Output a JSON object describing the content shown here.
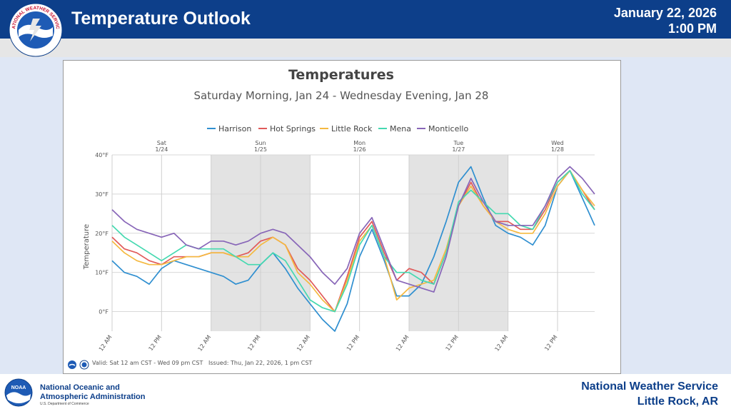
{
  "header": {
    "title": "Temperature Outlook",
    "date": "January 22, 2026",
    "time": "1:00 PM",
    "logo_text": "NATIONAL WEATHER SERVICE"
  },
  "chart_data": {
    "type": "line",
    "title": "Temperatures",
    "subtitle": "Saturday Morning, Jan 24 - Wednesday Evening, Jan 28",
    "ylabel": "Temperature",
    "ylim": [
      -5,
      40
    ],
    "y_ticks": [
      "0°F",
      "10°F",
      "20°F",
      "30°F",
      "40°F"
    ],
    "y_tick_values": [
      0,
      10,
      20,
      30,
      40
    ],
    "x_start": "2026-01-24 00:00",
    "x_step_hours": 3,
    "x_ticks": [
      "12 AM",
      "12 PM",
      "12 AM",
      "12 PM",
      "12 AM",
      "12 PM",
      "12 AM",
      "12 PM",
      "12 AM",
      "12 PM"
    ],
    "x_tick_hours": [
      0,
      12,
      24,
      36,
      48,
      60,
      72,
      84,
      96,
      108
    ],
    "days": [
      {
        "name": "Sat",
        "date": "1/24",
        "hour": 12
      },
      {
        "name": "Sun",
        "date": "1/25",
        "hour": 36
      },
      {
        "name": "Mon",
        "date": "1/26",
        "hour": 60
      },
      {
        "name": "Tue",
        "date": "1/27",
        "hour": 84
      },
      {
        "name": "Wed",
        "date": "1/28",
        "hour": 108
      }
    ],
    "night_shading": [
      [
        24,
        48
      ],
      [
        72,
        96
      ]
    ],
    "grid": true,
    "legend_position": "top",
    "series": [
      {
        "name": "Harrison",
        "color": "#2f8fd0",
        "values": [
          13,
          10,
          9,
          7,
          11,
          13,
          12,
          11,
          10,
          9,
          7,
          8,
          12,
          15,
          11,
          6,
          2,
          -2,
          -5,
          2,
          14,
          21,
          13,
          4,
          4,
          7,
          14,
          23,
          33,
          37,
          29,
          22,
          20,
          19,
          17,
          22,
          32,
          36,
          29,
          22
        ]
      },
      {
        "name": "Hot Springs",
        "color": "#e05a5a",
        "values": [
          19,
          16,
          15,
          13,
          12,
          14,
          14,
          14,
          15,
          15,
          14,
          15,
          18,
          19,
          17,
          11,
          8,
          4,
          0,
          9,
          19,
          23,
          15,
          8,
          11,
          10,
          7,
          15,
          27,
          33,
          27,
          23,
          23,
          21,
          21,
          26,
          33,
          36,
          31,
          26
        ]
      },
      {
        "name": "Little Rock",
        "color": "#f5b940",
        "values": [
          18,
          15,
          13,
          12,
          12,
          13,
          14,
          14,
          15,
          15,
          14,
          14,
          17,
          19,
          17,
          10,
          7,
          3,
          0,
          8,
          18,
          22,
          14,
          3,
          6,
          7,
          8,
          16,
          27,
          32,
          27,
          23,
          21,
          20,
          20,
          25,
          32,
          36,
          31,
          27
        ]
      },
      {
        "name": "Mena",
        "color": "#45d9b0",
        "values": [
          22,
          19,
          17,
          15,
          13,
          15,
          17,
          16,
          16,
          16,
          14,
          12,
          12,
          15,
          13,
          8,
          3,
          1,
          0,
          7,
          17,
          22,
          14,
          10,
          10,
          8,
          7,
          15,
          28,
          31,
          28,
          25,
          25,
          22,
          21,
          27,
          33,
          36,
          30,
          26
        ]
      },
      {
        "name": "Monticello",
        "color": "#8866b8",
        "values": [
          26,
          23,
          21,
          20,
          19,
          20,
          17,
          16,
          18,
          18,
          17,
          18,
          20,
          21,
          20,
          17,
          14,
          10,
          7,
          11,
          20,
          24,
          16,
          8,
          7,
          6,
          5,
          14,
          27,
          34,
          28,
          23,
          22,
          22,
          22,
          27,
          34,
          37,
          34,
          30
        ]
      }
    ]
  },
  "footer": {
    "valid": "Valid: Sat 12 am CST - Wed 09 pm CST",
    "issued": "Issued: Thu, Jan 22, 2026, 1 pm CST",
    "agency_line1": "National Oceanic and",
    "agency_line2": "Atmospheric Administration",
    "department": "U.S. Department of Commerce",
    "office_name": "National Weather Service",
    "office_location": "Little Rock, AR",
    "noaa_logo_text": "NOAA"
  }
}
